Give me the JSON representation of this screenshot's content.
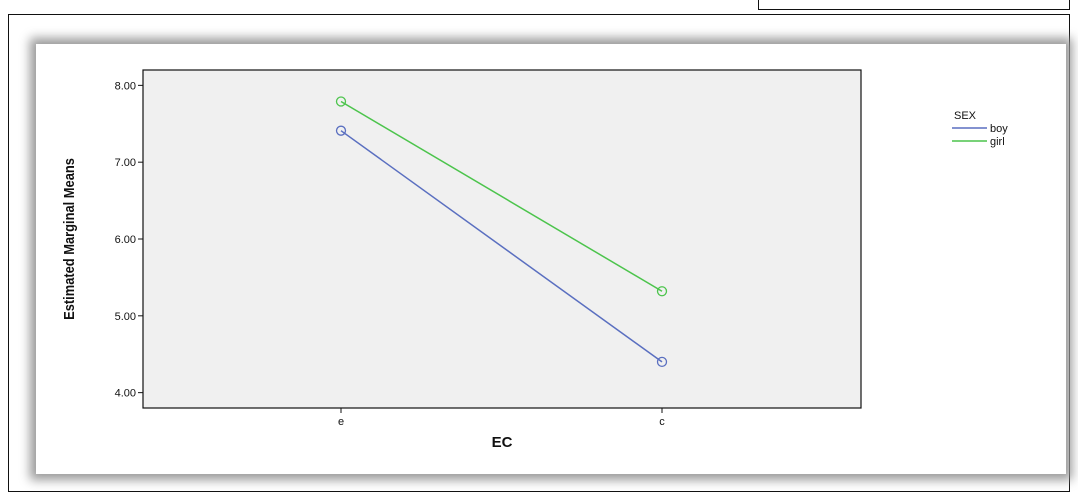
{
  "chart_data": {
    "type": "line",
    "title": "",
    "xlabel": "EC",
    "ylabel": "Estimated Marginal Means",
    "categories": [
      "e",
      "c"
    ],
    "ylim": [
      3.8,
      8.2
    ],
    "yticks": [
      "4.00",
      "5.00",
      "6.00",
      "7.00",
      "8.00"
    ],
    "grid": false,
    "legend": {
      "title": "SEX",
      "placement": "top-right outside"
    },
    "series": [
      {
        "name": "boy",
        "values": [
          7.41,
          4.4
        ],
        "color": "#5a6fc0"
      },
      {
        "name": "girl",
        "values": [
          7.79,
          5.32
        ],
        "color": "#4cc44c"
      }
    ],
    "plot_background": "#f0f0f0"
  }
}
